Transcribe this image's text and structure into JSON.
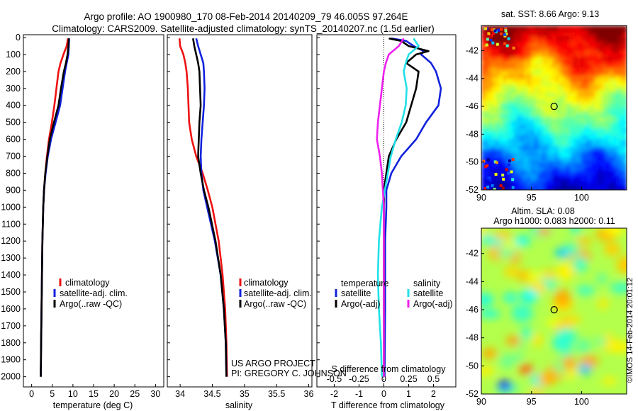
{
  "header": {
    "title_line1": "Argo profile: AO 1900980_170 08-Feb-2014 20140209_79 46.005S 97.264E",
    "title_line2": "Climatology: CARS2009. Satellite-adjusted climatology: synTS_20140207.nc (1.5d earlier)"
  },
  "colors": {
    "climatology": "#ee1111",
    "satellite": "#1122dd",
    "argo": "#000000",
    "sat_salinity": "#22e0e8",
    "argo_salinity": "#ee22ee"
  },
  "depth_ticks": [
    "0",
    "100",
    "200",
    "300",
    "400",
    "500",
    "600",
    "700",
    "800",
    "900",
    "1000",
    "1100",
    "1200",
    "1300",
    "1400",
    "1500",
    "1600",
    "1700",
    "1800",
    "1900",
    "2000"
  ],
  "chart_data": [
    {
      "type": "line",
      "name": "temperature",
      "xlabel": "temperature (deg C)",
      "x_ticks": [
        "0",
        "5",
        "10",
        "15",
        "20",
        "25",
        "30"
      ],
      "xlim": [
        -2,
        32
      ],
      "ylim_depth": [
        0,
        2060
      ],
      "legend": [
        "climatology",
        "satellite-adj. clim.",
        "Argo(..raw -QC)"
      ],
      "legend_placement": "lower-center",
      "series": [
        {
          "name": "climatology",
          "color_key": "climatology",
          "depth": [
            5,
            50,
            100,
            150,
            200,
            300,
            400,
            500,
            600,
            700,
            800,
            900,
            1000,
            1200,
            1400,
            1600,
            1800,
            2000
          ],
          "values": [
            8.8,
            8.5,
            7.7,
            7.0,
            6.5,
            6.0,
            5.5,
            4.9,
            4.2,
            3.7,
            3.3,
            3.0,
            2.8,
            2.6,
            2.5,
            2.4,
            2.3,
            2.2
          ]
        },
        {
          "name": "satellite-adj. clim.",
          "color_key": "satellite",
          "depth": [
            5,
            50,
            100,
            150,
            200,
            300,
            400,
            500,
            600,
            700,
            800,
            900,
            1000,
            1200,
            1400,
            1600,
            1800,
            2000
          ],
          "values": [
            9.1,
            9.0,
            8.9,
            8.5,
            8.1,
            7.5,
            6.9,
            5.8,
            4.7,
            3.9,
            3.4,
            3.0,
            2.8,
            2.6,
            2.5,
            2.4,
            2.3,
            2.2
          ]
        },
        {
          "name": "Argo(..raw -QC)",
          "color_key": "argo",
          "depth": [
            5,
            50,
            100,
            150,
            200,
            300,
            400,
            500,
            600,
            700,
            800,
            900,
            1000,
            1200,
            1400,
            1600,
            1800,
            2000
          ],
          "values": [
            9.0,
            8.9,
            8.7,
            8.3,
            7.8,
            7.1,
            6.5,
            5.4,
            4.4,
            3.8,
            3.3,
            3.0,
            2.8,
            2.6,
            2.5,
            2.4,
            2.3,
            2.2
          ]
        }
      ]
    },
    {
      "type": "line",
      "name": "salinity",
      "xlabel": "salinity",
      "x_ticks": [
        "34",
        "34.5",
        "35",
        "35.5",
        "36"
      ],
      "xlim": [
        33.8,
        36.05
      ],
      "ylim_depth": [
        0,
        2060
      ],
      "legend": [
        "climatology",
        "satellite-adj. clim.",
        "Argo(..raw -QC)"
      ],
      "legend_placement": "lower-right",
      "series": [
        {
          "name": "climatology",
          "color_key": "climatology",
          "depth": [
            5,
            50,
            100,
            150,
            200,
            300,
            400,
            500,
            600,
            700,
            800,
            900,
            1000,
            1200,
            1400,
            1600,
            1800,
            2000
          ],
          "values": [
            33.99,
            34.0,
            34.05,
            34.08,
            34.1,
            34.12,
            34.13,
            34.14,
            34.18,
            34.25,
            34.35,
            34.43,
            34.5,
            34.6,
            34.66,
            34.7,
            34.72,
            34.73
          ]
        },
        {
          "name": "satellite-adj. clim.",
          "color_key": "satellite",
          "depth": [
            5,
            50,
            100,
            150,
            200,
            300,
            400,
            500,
            600,
            700,
            800,
            900,
            1000,
            1200,
            1400,
            1600,
            1800,
            2000
          ],
          "values": [
            34.25,
            34.28,
            34.32,
            34.36,
            34.37,
            34.38,
            34.37,
            34.35,
            34.33,
            34.32,
            34.33,
            34.36,
            34.42,
            34.54,
            34.63,
            34.68,
            34.71,
            34.72
          ]
        },
        {
          "name": "Argo(..raw -QC)",
          "color_key": "argo",
          "depth": [
            5,
            50,
            100,
            150,
            200,
            300,
            400,
            500,
            600,
            700,
            800,
            900,
            1000,
            1200,
            1400,
            1600,
            1800,
            2000
          ],
          "values": [
            34.2,
            34.22,
            34.25,
            34.28,
            34.3,
            34.31,
            34.32,
            34.3,
            34.29,
            34.28,
            34.32,
            34.37,
            34.44,
            34.55,
            34.63,
            34.68,
            34.71,
            34.72
          ]
        }
      ]
    },
    {
      "type": "line",
      "name": "difference from climatology",
      "xlabel": "T difference from climatology",
      "xlabel_top": "S difference from climatology",
      "x_ticks": [
        "-2",
        "-1",
        "0",
        "1",
        "2"
      ],
      "x_ticks_salinity": [
        "-0.5",
        "-0.25",
        "0",
        "0.25",
        "0.5"
      ],
      "xlim": [
        -2.7,
        2.9
      ],
      "ylim_depth": [
        0,
        2060
      ],
      "legend_temperature_title": "temperature",
      "legend_salinity_title": "salinity",
      "legend": [
        "satellite",
        "Argo(-adj)",
        "satellite",
        "Argo(-adj)"
      ],
      "series": [
        {
          "name": "temperature satellite",
          "color_key": "satellite",
          "depth": [
            5,
            20,
            50,
            80,
            100,
            150,
            200,
            300,
            400,
            500,
            600,
            700,
            800,
            900,
            1000,
            1200,
            1400,
            1600,
            1800,
            2000
          ],
          "values": [
            0.3,
            0.9,
            1.2,
            1.6,
            1.5,
            1.9,
            2.1,
            2.3,
            2.2,
            1.7,
            1.3,
            0.7,
            0.3,
            0.1,
            0.1,
            0.05,
            0.05,
            0.05,
            0.04,
            0.03
          ]
        },
        {
          "name": "temperature Argo(-adj)",
          "color_key": "argo",
          "depth": [
            5,
            20,
            50,
            80,
            100,
            150,
            200,
            300,
            400,
            500,
            600,
            700,
            800,
            900,
            1000,
            1200,
            1400,
            1600,
            1800,
            2000
          ],
          "values": [
            0.2,
            0.7,
            1.0,
            1.8,
            1.3,
            0.9,
            1.4,
            1.3,
            1.1,
            0.9,
            0.5,
            0.2,
            0.1,
            0.0,
            0.0,
            0.0,
            0.0,
            0.0,
            0.0,
            0.0
          ]
        },
        {
          "name": "salinity satellite",
          "color_key": "sat_salinity",
          "depth": [
            5,
            50,
            100,
            150,
            200,
            300,
            400,
            500,
            600,
            700,
            800,
            900,
            1000,
            1200,
            1400,
            1600,
            1800,
            2000
          ],
          "values": [
            0.3,
            0.35,
            0.25,
            0.22,
            0.2,
            0.23,
            0.22,
            0.18,
            0.12,
            0.07,
            0.04,
            0.01,
            -0.02,
            -0.05,
            -0.06,
            -0.05,
            -0.03,
            -0.02
          ]
        },
        {
          "name": "salinity Argo(-adj)",
          "color_key": "argo_salinity",
          "depth": [
            5,
            50,
            100,
            150,
            200,
            300,
            400,
            500,
            600,
            700,
            800,
            900,
            1000,
            1200,
            1400,
            1600,
            1800,
            2000
          ],
          "values": [
            0.2,
            0.15,
            0.05,
            0.02,
            0.0,
            -0.02,
            -0.04,
            -0.06,
            -0.07,
            -0.04,
            -0.02,
            -0.01,
            0.0,
            0.0,
            0.0,
            0.0,
            0.0,
            0.0
          ]
        }
      ]
    },
    {
      "type": "heatmap",
      "name": "sat. SST map",
      "title": "sat. SST: 8.66  Argo: 9.13",
      "x_ticks": [
        "90",
        "95",
        "100"
      ],
      "y_ticks": [
        "-42",
        "-44",
        "-46",
        "-48",
        "-50",
        "-52"
      ],
      "xlim": [
        90,
        104.5
      ],
      "ylim": [
        -52,
        -40.2
      ],
      "marker": {
        "lon": 97.264,
        "lat": -46.005
      }
    },
    {
      "type": "heatmap",
      "name": "altimetry SLA map",
      "title_line1": "Altim. SLA: 0.08",
      "title_line2": "Argo h1000: 0.083 h2000: 0.11",
      "x_ticks": [
        "90",
        "95",
        "100"
      ],
      "y_ticks": [
        "-42",
        "-44",
        "-46",
        "-48",
        "-50",
        "-52"
      ],
      "xlim": [
        90,
        104.5
      ],
      "ylim": [
        -52,
        -40.2
      ],
      "marker": {
        "lon": 97.264,
        "lat": -46.005
      }
    }
  ],
  "credits": {
    "project": "US ARGO PROJECT",
    "pi": "PI: GREGORY C. JOHNSON",
    "imos": "©IMOS 14-Feb-2014 20:01:12"
  }
}
